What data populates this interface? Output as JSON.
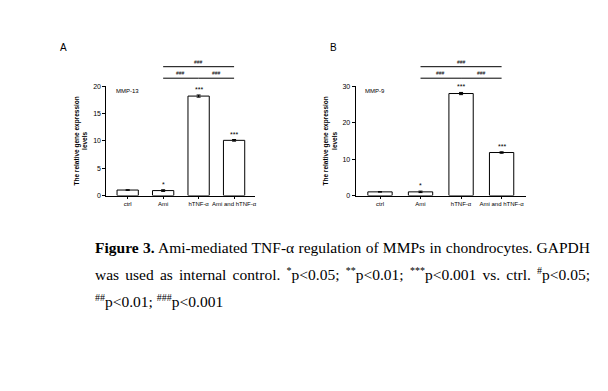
{
  "chart_data": [
    {
      "type": "bar",
      "panel": "A",
      "title": "MMP-13",
      "y_label": "The relative gene expression levels",
      "categories": [
        "ctrl",
        "Ami",
        "hTNF-α",
        "Ami and hTNF-α"
      ],
      "values": [
        1,
        0.9,
        18.2,
        10.1
      ],
      "errors": [
        0.05,
        0.15,
        0.2,
        0.15
      ],
      "significance": [
        null,
        "*",
        "***",
        "***"
      ],
      "comparisons": [
        {
          "from": "Ami",
          "to": "hTNF-α",
          "label": "###"
        },
        {
          "from": "hTNF-α",
          "to": "Ami and hTNF-α",
          "label": "###"
        },
        {
          "from": "Ami",
          "to": "Ami and hTNF-α",
          "label": "###"
        }
      ],
      "color": "#ffffff",
      "ylim": [
        0,
        20
      ],
      "yticks": [
        0,
        5,
        10,
        15,
        20
      ],
      "grid": false
    },
    {
      "type": "bar",
      "panel": "B",
      "title": "MMP-9",
      "y_label": "The relative gene expression levels",
      "categories": [
        "ctrl",
        "Ami",
        "hTNF-α",
        "Ami and hTNF-α"
      ],
      "values": [
        1,
        1.0,
        28,
        11.8
      ],
      "errors": [
        0.05,
        0.2,
        0.3,
        0.2
      ],
      "significance": [
        null,
        "*",
        "***",
        "***"
      ],
      "comparisons": [
        {
          "from": "Ami",
          "to": "hTNF-α",
          "label": "###"
        },
        {
          "from": "hTNF-α",
          "to": "Ami and hTNF-α",
          "label": "###"
        },
        {
          "from": "Ami",
          "to": "Ami and hTNF-α",
          "label": "###"
        }
      ],
      "color": "#ffffff",
      "ylim": [
        0,
        30
      ],
      "yticks": [
        0,
        10,
        20,
        30
      ],
      "grid": false
    }
  ],
  "caption": {
    "label": "Figure 3.",
    "text": "Ami-mediated TNF-α regulation of MMPs in chondrocytes. GAPDH was used as internal control.",
    "notes": [
      {
        "mark": "*",
        "text": "p<0.05;"
      },
      {
        "mark": "**",
        "text": "p<0.01;"
      },
      {
        "mark": "***",
        "text": "p<0.001 vs. ctrl."
      },
      {
        "mark": "#",
        "text": "p<0.05;"
      },
      {
        "mark": "##",
        "text": "p<0.01;"
      },
      {
        "mark": "###",
        "text": "p<0.001"
      }
    ]
  }
}
